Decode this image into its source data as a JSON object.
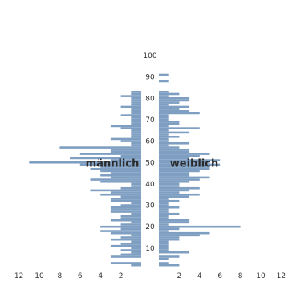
{
  "chart_data": {
    "type": "bar",
    "orientation": "horizontal-population-pyramid",
    "title": "",
    "xlabel": "",
    "ylabel": "",
    "xlim": [
      -12,
      12
    ],
    "ylim": [
      0,
      100
    ],
    "x_ticks": [
      -12,
      -10,
      -8,
      -6,
      -4,
      -2,
      2,
      4,
      6,
      8,
      10,
      12
    ],
    "x_tick_labels": [
      "12",
      "10",
      "8",
      "6",
      "4",
      "2",
      "2",
      "4",
      "6",
      "8",
      "10",
      "12"
    ],
    "y_ticks": [
      10,
      20,
      30,
      40,
      50,
      60,
      70,
      80,
      90,
      100
    ],
    "y_tick_labels": [
      "10",
      "20",
      "30",
      "40",
      "50",
      "60",
      "70",
      "80",
      "90",
      "100"
    ],
    "bar_color": "#7f9fc2",
    "legend": "none",
    "grid": false,
    "series": [
      {
        "name": "männlich",
        "label": "männlich",
        "ages": [
          2,
          3,
          6,
          7,
          8,
          9,
          10,
          11,
          12,
          13,
          14,
          15,
          16,
          17,
          18,
          19,
          20,
          21,
          22,
          23,
          24,
          25,
          26,
          27,
          28,
          29,
          30,
          31,
          32,
          33,
          34,
          35,
          36,
          37,
          38,
          39,
          40,
          41,
          42,
          43,
          44,
          45,
          46,
          47,
          48,
          49,
          50,
          51,
          52,
          53,
          54,
          55,
          56,
          57,
          58,
          59,
          60,
          61,
          62,
          63,
          64,
          65,
          66,
          67,
          68,
          69,
          70,
          71,
          72,
          73,
          74,
          75,
          76,
          77,
          78,
          79,
          80,
          81,
          82,
          83
        ],
        "values": [
          1,
          3,
          3,
          2,
          1,
          2,
          1,
          3,
          2,
          1,
          3,
          2,
          1,
          3,
          4,
          2,
          4,
          2,
          1,
          3,
          2,
          2,
          1,
          3,
          3,
          3,
          2,
          1,
          3,
          3,
          2,
          4,
          3,
          5,
          2,
          1,
          1,
          4,
          5,
          3,
          4,
          3,
          4,
          5,
          4,
          6,
          11,
          3,
          7,
          2,
          6,
          3,
          3,
          8,
          1,
          1,
          2,
          3,
          1,
          1,
          1,
          1,
          2,
          3,
          1,
          1,
          1,
          1,
          2,
          1,
          1,
          1,
          2,
          1,
          1,
          1,
          1,
          2,
          1,
          1
        ]
      },
      {
        "name": "weiblich",
        "label": "weiblich",
        "ages": [
          2,
          3,
          5,
          6,
          8,
          9,
          10,
          11,
          12,
          13,
          14,
          15,
          16,
          17,
          18,
          19,
          20,
          21,
          22,
          23,
          24,
          25,
          26,
          27,
          28,
          29,
          30,
          31,
          32,
          33,
          34,
          35,
          36,
          37,
          38,
          39,
          40,
          41,
          42,
          43,
          44,
          45,
          46,
          47,
          48,
          49,
          50,
          51,
          52,
          53,
          54,
          55,
          56,
          57,
          58,
          59,
          60,
          61,
          62,
          63,
          64,
          65,
          66,
          67,
          68,
          69,
          70,
          71,
          72,
          73,
          74,
          75,
          76,
          77,
          78,
          79,
          80,
          81,
          82,
          83,
          88,
          91
        ],
        "values": [
          2,
          1,
          1,
          2,
          3,
          1,
          1,
          1,
          1,
          1,
          2,
          2,
          4,
          5,
          1,
          2,
          8,
          1,
          3,
          3,
          1,
          1,
          2,
          1,
          1,
          2,
          1,
          1,
          2,
          1,
          3,
          4,
          2,
          3,
          4,
          2,
          2,
          3,
          4,
          5,
          3,
          3,
          4,
          5,
          5,
          6,
          5,
          6,
          3,
          4,
          5,
          3,
          3,
          2,
          1,
          3,
          1,
          1,
          2,
          1,
          3,
          1,
          4,
          1,
          2,
          2,
          1,
          1,
          1,
          4,
          3,
          2,
          3,
          1,
          2,
          3,
          3,
          1,
          2,
          1,
          1,
          1
        ]
      }
    ]
  }
}
